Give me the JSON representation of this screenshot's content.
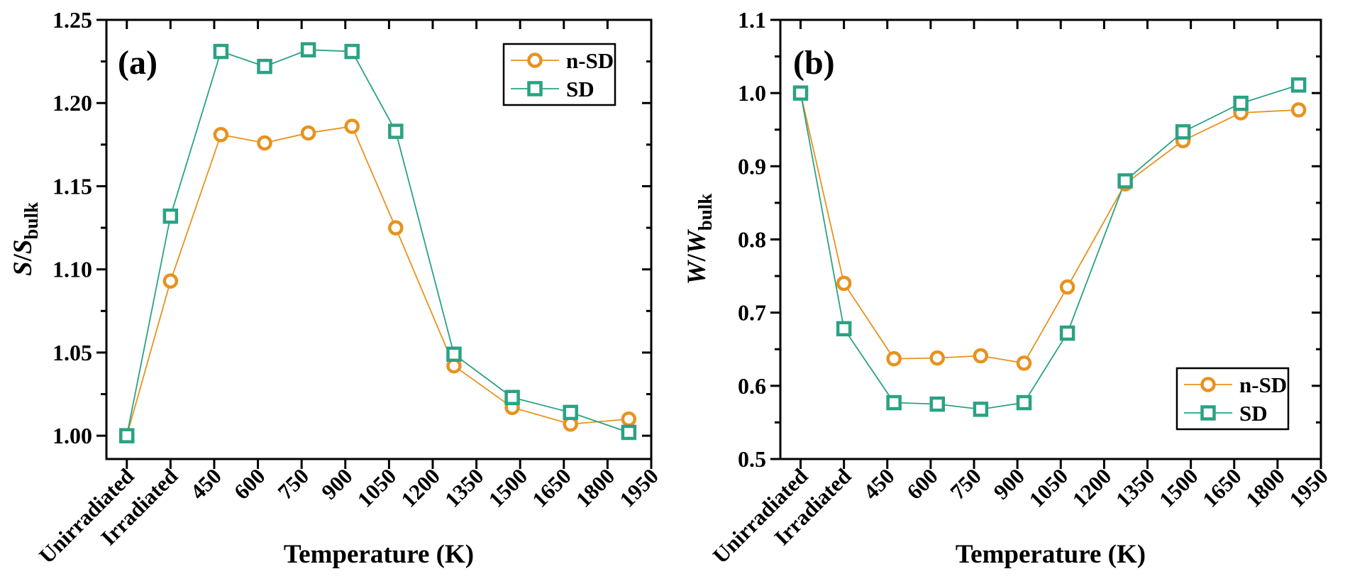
{
  "figure": {
    "background": "#FFFFFF",
    "axis_color": "#000000",
    "accent_orange": "#E8921E",
    "accent_teal": "#2AA284"
  },
  "chart_data": [
    {
      "type": "line",
      "panel_label": "(a)",
      "xlabel": "Temperature (K)",
      "ylabel": {
        "first_italic": "S",
        "slash": "/",
        "second_italic": "S",
        "subscript": "bulk"
      },
      "x_tick_labels": [
        "Unirradiated",
        "Irradiated",
        "450",
        "600",
        "750",
        "900",
        "1050",
        "1200",
        "1350",
        "1500",
        "1650",
        "1800",
        "1950"
      ],
      "x_tick_values_K": [
        150,
        300,
        450,
        600,
        750,
        900,
        1050,
        1200,
        1350,
        1500,
        1650,
        1800,
        1950
      ],
      "xlim_K": [
        80,
        1950
      ],
      "ylim": [
        0.986,
        1.25
      ],
      "y_major_ticks": [
        1.0,
        1.05,
        1.1,
        1.15,
        1.2,
        1.25
      ],
      "y_minor_ticks": [
        1.025,
        1.075,
        1.125,
        1.175,
        1.225
      ],
      "y_tick_decimals": 2,
      "grid": false,
      "x_data_K": [
        150,
        300,
        473,
        623,
        773,
        923,
        1073,
        1273,
        1473,
        1673,
        1873
      ],
      "series": [
        {
          "name": "n-SD",
          "marker": "circle",
          "color": "#E8921E",
          "values": [
            1.0,
            1.093,
            1.181,
            1.176,
            1.182,
            1.186,
            1.125,
            1.042,
            1.017,
            1.007,
            1.01
          ]
        },
        {
          "name": "SD",
          "marker": "square",
          "color": "#2AA284",
          "values": [
            1.0,
            1.132,
            1.231,
            1.222,
            1.232,
            1.231,
            1.183,
            1.049,
            1.023,
            1.014,
            1.002
          ]
        }
      ],
      "legend": {
        "entries": [
          "n-SD",
          "SD"
        ],
        "position": "top-right"
      }
    },
    {
      "type": "line",
      "panel_label": "(b)",
      "xlabel": "Temperature (K)",
      "ylabel": {
        "first_italic": "W",
        "slash": "/",
        "second_italic": "W",
        "subscript": "bulk"
      },
      "x_tick_labels": [
        "Unirradiated",
        "Irradiated",
        "450",
        "600",
        "750",
        "900",
        "1050",
        "1200",
        "1350",
        "1500",
        "1650",
        "1800",
        "1950"
      ],
      "x_tick_values_K": [
        150,
        300,
        450,
        600,
        750,
        900,
        1050,
        1200,
        1350,
        1500,
        1650,
        1800,
        1950
      ],
      "xlim_K": [
        80,
        1950
      ],
      "ylim": [
        0.5,
        1.1
      ],
      "y_major_ticks": [
        0.5,
        0.6,
        0.7,
        0.8,
        0.9,
        1.0,
        1.1
      ],
      "y_minor_ticks": [
        0.55,
        0.65,
        0.75,
        0.85,
        0.95,
        1.05
      ],
      "y_tick_decimals": 1,
      "grid": false,
      "x_data_K": [
        150,
        300,
        473,
        623,
        773,
        923,
        1073,
        1273,
        1473,
        1673,
        1873
      ],
      "series": [
        {
          "name": "n-SD",
          "marker": "circle",
          "color": "#E8921E",
          "values": [
            1.0,
            0.74,
            0.637,
            0.638,
            0.641,
            0.631,
            0.735,
            0.876,
            0.935,
            0.973,
            0.977
          ]
        },
        {
          "name": "SD",
          "marker": "square",
          "color": "#2AA284",
          "values": [
            1.0,
            0.678,
            0.577,
            0.575,
            0.568,
            0.577,
            0.672,
            0.88,
            0.947,
            0.986,
            1.011
          ]
        }
      ],
      "legend": {
        "entries": [
          "n-SD",
          "SD"
        ],
        "position": "right-lower-middle"
      }
    }
  ]
}
